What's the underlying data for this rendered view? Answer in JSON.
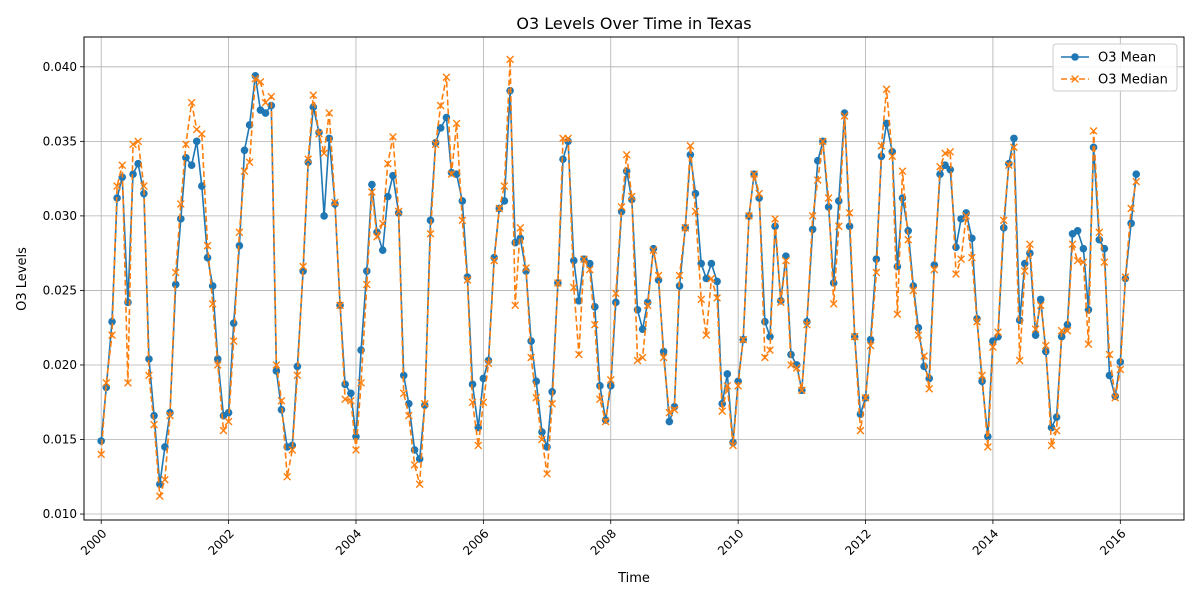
{
  "chart_data": {
    "type": "line",
    "title": "O3 Levels Over Time in Texas",
    "xlabel": "Time",
    "ylabel": "O3 Levels",
    "xlim": [
      1999.73,
      2017.0
    ],
    "ylim": [
      0.0096,
      0.042
    ],
    "xticks": [
      2000,
      2002,
      2004,
      2006,
      2008,
      2010,
      2012,
      2014,
      2016
    ],
    "xtick_labels": [
      "2000",
      "2002",
      "2004",
      "2006",
      "2008",
      "2010",
      "2012",
      "2014",
      "2016"
    ],
    "yticks": [
      0.01,
      0.015,
      0.02,
      0.025,
      0.03,
      0.035,
      0.04
    ],
    "ytick_labels": [
      "0.010",
      "0.015",
      "0.020",
      "0.025",
      "0.030",
      "0.035",
      "0.040"
    ],
    "grid": true,
    "legend_position": "top-right",
    "colors": {
      "mean": "#1f77b4",
      "median": "#ff7f0e"
    },
    "series": [
      {
        "name": "O3 Mean",
        "style": "solid-line-circle-markers",
        "x": [
          2000.0,
          2000.08,
          2000.17,
          2000.25,
          2000.33,
          2000.42,
          2000.5,
          2000.58,
          2000.67,
          2000.75,
          2000.83,
          2000.92,
          2001.0,
          2001.08,
          2001.17,
          2001.25,
          2001.33,
          2001.42,
          2001.5,
          2001.58,
          2001.67,
          2001.75,
          2001.83,
          2001.92,
          2002.0,
          2002.08,
          2002.17,
          2002.25,
          2002.33,
          2002.42,
          2002.5,
          2002.58,
          2002.67,
          2002.75,
          2002.83,
          2002.92,
          2003.0,
          2003.08,
          2003.17,
          2003.25,
          2003.33,
          2003.42,
          2003.5,
          2003.58,
          2003.67,
          2003.75,
          2003.83,
          2003.92,
          2004.0,
          2004.08,
          2004.17,
          2004.25,
          2004.33,
          2004.42,
          2004.5,
          2004.58,
          2004.67,
          2004.75,
          2004.83,
          2004.92,
          2005.0,
          2005.08,
          2005.17,
          2005.25,
          2005.33,
          2005.42,
          2005.5,
          2005.58,
          2005.67,
          2005.75,
          2005.83,
          2005.92,
          2006.0,
          2006.08,
          2006.17,
          2006.25,
          2006.33,
          2006.42,
          2006.5,
          2006.58,
          2006.67,
          2006.75,
          2006.83,
          2006.92,
          2007.0,
          2007.08,
          2007.17,
          2007.25,
          2007.33,
          2007.42,
          2007.5,
          2007.58,
          2007.67,
          2007.75,
          2007.83,
          2007.92,
          2008.0,
          2008.08,
          2008.17,
          2008.25,
          2008.33,
          2008.42,
          2008.5,
          2008.58,
          2008.67,
          2008.75,
          2008.83,
          2008.92,
          2009.0,
          2009.08,
          2009.17,
          2009.25,
          2009.33,
          2009.42,
          2009.5,
          2009.58,
          2009.67,
          2009.75,
          2009.83,
          2009.92,
          2010.0,
          2010.08,
          2010.17,
          2010.25,
          2010.33,
          2010.42,
          2010.5,
          2010.58,
          2010.67,
          2010.75,
          2010.83,
          2010.92,
          2011.0,
          2011.08,
          2011.17,
          2011.25,
          2011.33,
          2011.42,
          2011.5,
          2011.58,
          2011.67,
          2011.75,
          2011.83,
          2011.92,
          2012.0,
          2012.08,
          2012.17,
          2012.25,
          2012.33,
          2012.42,
          2012.5,
          2012.58,
          2012.67,
          2012.75,
          2012.83,
          2012.92,
          2013.0,
          2013.08,
          2013.17,
          2013.25,
          2013.33,
          2013.42,
          2013.5,
          2013.58,
          2013.67,
          2013.75,
          2013.83,
          2013.92,
          2014.0,
          2014.08,
          2014.17,
          2014.25,
          2014.33,
          2014.42,
          2014.5,
          2014.58,
          2014.67,
          2014.75,
          2014.83,
          2014.92,
          2015.0,
          2015.08,
          2015.17,
          2015.25,
          2015.33,
          2015.42,
          2015.5,
          2015.58,
          2015.67,
          2015.75,
          2015.83,
          2015.92,
          2016.0,
          2016.08,
          2016.17,
          2016.25
        ],
        "y": [
          0.0149,
          0.0185,
          0.0229,
          0.0312,
          0.0326,
          0.0242,
          0.0328,
          0.0335,
          0.0315,
          0.0204,
          0.0166,
          0.012,
          0.0145,
          0.0168,
          0.0254,
          0.0298,
          0.0339,
          0.0334,
          0.035,
          0.032,
          0.0272,
          0.0253,
          0.0204,
          0.0166,
          0.0168,
          0.0228,
          0.028,
          0.0344,
          0.0361,
          0.0394,
          0.0371,
          0.0369,
          0.0374,
          0.0196,
          0.017,
          0.0145,
          0.0146,
          0.0199,
          0.0263,
          0.0336,
          0.0373,
          0.0356,
          0.03,
          0.0352,
          0.0308,
          0.024,
          0.0187,
          0.0181,
          0.0152,
          0.021,
          0.0263,
          0.0321,
          0.0289,
          0.0277,
          0.0313,
          0.0327,
          0.0302,
          0.0193,
          0.0174,
          0.0143,
          0.0137,
          0.0173,
          0.0297,
          0.0349,
          0.0359,
          0.0366,
          0.0329,
          0.0328,
          0.031,
          0.0259,
          0.0187,
          0.0158,
          0.0191,
          0.0203,
          0.0272,
          0.0305,
          0.031,
          0.0384,
          0.0282,
          0.0285,
          0.0263,
          0.0216,
          0.0189,
          0.0155,
          0.0145,
          0.0182,
          0.0255,
          0.0338,
          0.035,
          0.027,
          0.0243,
          0.0271,
          0.0268,
          0.0239,
          0.0186,
          0.0163,
          0.0186,
          0.0242,
          0.0303,
          0.033,
          0.0311,
          0.0237,
          0.0224,
          0.0242,
          0.0278,
          0.0257,
          0.0209,
          0.0162,
          0.0172,
          0.0253,
          0.0292,
          0.0341,
          0.0315,
          0.0268,
          0.0258,
          0.0268,
          0.0256,
          0.0174,
          0.0194,
          0.0148,
          0.0189,
          0.0217,
          0.03,
          0.0328,
          0.0312,
          0.0229,
          0.0219,
          0.0293,
          0.0243,
          0.0273,
          0.0207,
          0.02,
          0.0183,
          0.0229,
          0.0291,
          0.0337,
          0.035,
          0.0306,
          0.0255,
          0.031,
          0.0369,
          0.0293,
          0.0219,
          0.0167,
          0.0178,
          0.0217,
          0.0271,
          0.034,
          0.0362,
          0.0343,
          0.0266,
          0.0312,
          0.029,
          0.0253,
          0.0225,
          0.0199,
          0.0191,
          0.0267,
          0.0328,
          0.0334,
          0.0331,
          0.0279,
          0.0298,
          0.0302,
          0.0285,
          0.0231,
          0.0189,
          0.0152,
          0.0216,
          0.0219,
          0.0292,
          0.0335,
          0.0352,
          0.023,
          0.0268,
          0.0275,
          0.022,
          0.0244,
          0.0209,
          0.0158,
          0.0165,
          0.0219,
          0.0227,
          0.0288,
          0.029,
          0.0278,
          0.0237,
          0.0346,
          0.0284,
          0.0278,
          0.0193,
          0.0179,
          0.0202,
          0.0258,
          0.0295,
          0.0328
        ]
      },
      {
        "name": "O3 Median",
        "style": "dashed-line-x-markers",
        "x": [
          2000.0,
          2000.08,
          2000.17,
          2000.25,
          2000.33,
          2000.42,
          2000.5,
          2000.58,
          2000.67,
          2000.75,
          2000.83,
          2000.92,
          2001.0,
          2001.08,
          2001.17,
          2001.25,
          2001.33,
          2001.42,
          2001.5,
          2001.58,
          2001.67,
          2001.75,
          2001.83,
          2001.92,
          2002.0,
          2002.08,
          2002.17,
          2002.25,
          2002.33,
          2002.42,
          2002.5,
          2002.58,
          2002.67,
          2002.75,
          2002.83,
          2002.92,
          2003.0,
          2003.08,
          2003.17,
          2003.25,
          2003.33,
          2003.42,
          2003.5,
          2003.58,
          2003.67,
          2003.75,
          2003.83,
          2003.92,
          2004.0,
          2004.08,
          2004.17,
          2004.25,
          2004.33,
          2004.42,
          2004.5,
          2004.58,
          2004.67,
          2004.75,
          2004.83,
          2004.92,
          2005.0,
          2005.08,
          2005.17,
          2005.25,
          2005.33,
          2005.42,
          2005.5,
          2005.58,
          2005.67,
          2005.75,
          2005.83,
          2005.92,
          2006.0,
          2006.08,
          2006.17,
          2006.25,
          2006.33,
          2006.42,
          2006.5,
          2006.58,
          2006.67,
          2006.75,
          2006.83,
          2006.92,
          2007.0,
          2007.08,
          2007.17,
          2007.25,
          2007.33,
          2007.42,
          2007.5,
          2007.58,
          2007.67,
          2007.75,
          2007.83,
          2007.92,
          2008.0,
          2008.08,
          2008.17,
          2008.25,
          2008.33,
          2008.42,
          2008.5,
          2008.58,
          2008.67,
          2008.75,
          2008.83,
          2008.92,
          2009.0,
          2009.08,
          2009.17,
          2009.25,
          2009.33,
          2009.42,
          2009.5,
          2009.58,
          2009.67,
          2009.75,
          2009.83,
          2009.92,
          2010.0,
          2010.08,
          2010.17,
          2010.25,
          2010.33,
          2010.42,
          2010.5,
          2010.58,
          2010.67,
          2010.75,
          2010.83,
          2010.92,
          2011.0,
          2011.08,
          2011.17,
          2011.25,
          2011.33,
          2011.42,
          2011.5,
          2011.58,
          2011.67,
          2011.75,
          2011.83,
          2011.92,
          2012.0,
          2012.08,
          2012.17,
          2012.25,
          2012.33,
          2012.42,
          2012.5,
          2012.58,
          2012.67,
          2012.75,
          2012.83,
          2012.92,
          2013.0,
          2013.08,
          2013.17,
          2013.25,
          2013.33,
          2013.42,
          2013.5,
          2013.58,
          2013.67,
          2013.75,
          2013.83,
          2013.92,
          2014.0,
          2014.08,
          2014.17,
          2014.25,
          2014.33,
          2014.42,
          2014.5,
          2014.58,
          2014.67,
          2014.75,
          2014.83,
          2014.92,
          2015.0,
          2015.08,
          2015.17,
          2015.25,
          2015.33,
          2015.42,
          2015.5,
          2015.58,
          2015.67,
          2015.75,
          2015.83,
          2015.92,
          2016.0,
          2016.08,
          2016.17,
          2016.25
        ],
        "y": [
          0.014,
          0.0188,
          0.022,
          0.032,
          0.0334,
          0.0188,
          0.0348,
          0.035,
          0.032,
          0.0193,
          0.016,
          0.0112,
          0.0123,
          0.0166,
          0.0262,
          0.0308,
          0.0348,
          0.0376,
          0.0358,
          0.0355,
          0.028,
          0.0241,
          0.02,
          0.0156,
          0.0162,
          0.0216,
          0.0289,
          0.033,
          0.0336,
          0.0392,
          0.039,
          0.0376,
          0.038,
          0.02,
          0.0176,
          0.0125,
          0.0143,
          0.0193,
          0.0266,
          0.0338,
          0.0381,
          0.0355,
          0.0342,
          0.0369,
          0.0309,
          0.024,
          0.0177,
          0.0176,
          0.0143,
          0.0188,
          0.0254,
          0.0316,
          0.0286,
          0.0295,
          0.0335,
          0.0353,
          0.0303,
          0.0181,
          0.0166,
          0.0133,
          0.012,
          0.0174,
          0.0288,
          0.0348,
          0.0374,
          0.0393,
          0.0328,
          0.0362,
          0.0297,
          0.0257,
          0.0175,
          0.0146,
          0.0175,
          0.0201,
          0.027,
          0.0305,
          0.032,
          0.0405,
          0.024,
          0.0292,
          0.0265,
          0.0205,
          0.0178,
          0.015,
          0.0127,
          0.0174,
          0.0255,
          0.0352,
          0.0352,
          0.0252,
          0.0207,
          0.0271,
          0.0264,
          0.0227,
          0.0177,
          0.0162,
          0.019,
          0.0248,
          0.0306,
          0.0341,
          0.0313,
          0.0203,
          0.0205,
          0.024,
          0.0277,
          0.026,
          0.0205,
          0.0168,
          0.017,
          0.026,
          0.0292,
          0.0347,
          0.0303,
          0.0244,
          0.022,
          0.0258,
          0.0245,
          0.0169,
          0.0186,
          0.0146,
          0.0186,
          0.0217,
          0.03,
          0.0328,
          0.0315,
          0.0205,
          0.021,
          0.0298,
          0.0242,
          0.027,
          0.02,
          0.0198,
          0.0183,
          0.0227,
          0.03,
          0.0324,
          0.035,
          0.0312,
          0.0241,
          0.0293,
          0.0367,
          0.0302,
          0.0219,
          0.0156,
          0.0178,
          0.0213,
          0.0262,
          0.0347,
          0.0385,
          0.034,
          0.0234,
          0.033,
          0.0284,
          0.025,
          0.022,
          0.0206,
          0.0184,
          0.0264,
          0.0333,
          0.0342,
          0.0343,
          0.0261,
          0.0271,
          0.03,
          0.0272,
          0.0229,
          0.0193,
          0.0145,
          0.0212,
          0.0222,
          0.0297,
          0.0334,
          0.0346,
          0.0203,
          0.0263,
          0.0281,
          0.0224,
          0.024,
          0.0213,
          0.0146,
          0.0156,
          0.0223,
          0.0223,
          0.0281,
          0.027,
          0.0269,
          0.0214,
          0.0357,
          0.0289,
          0.0269,
          0.0207,
          0.0178,
          0.0197,
          0.0259,
          0.0305,
          0.0323
        ]
      }
    ]
  }
}
